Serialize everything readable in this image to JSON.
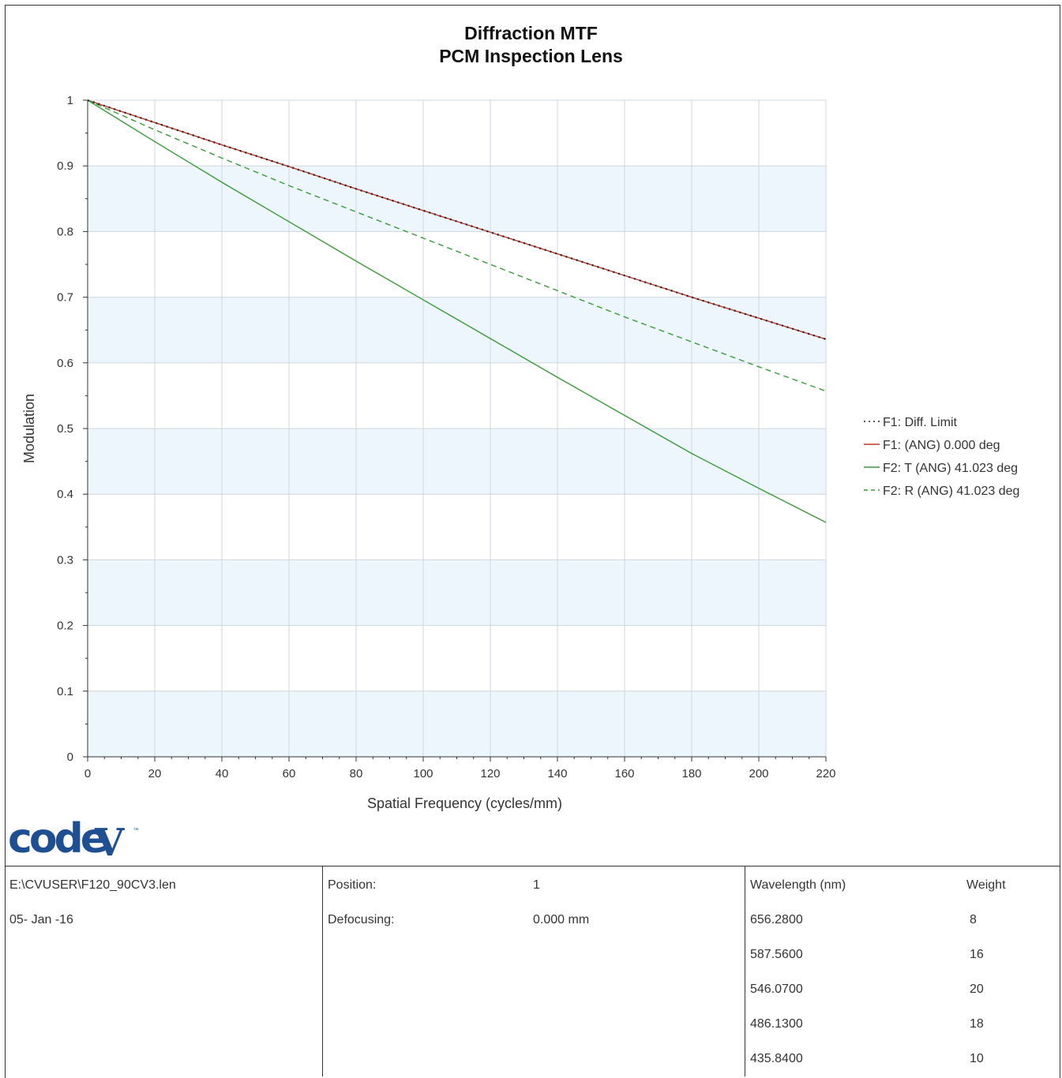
{
  "chart_data": {
    "type": "line",
    "title": "Diffraction MTF",
    "subtitle": "PCM Inspection Lens",
    "xlabel": "Spatial Frequency (cycles/mm)",
    "ylabel": "Modulation",
    "xlim": [
      0,
      220
    ],
    "ylim": [
      0,
      1
    ],
    "x_ticks": [
      "0",
      "20",
      "40",
      "60",
      "80",
      "100",
      "120",
      "140",
      "160",
      "180",
      "200",
      "220"
    ],
    "y_ticks": [
      "0",
      "0.1",
      "0.2",
      "0.3",
      "0.4",
      "0.5",
      "0.6",
      "0.7",
      "0.8",
      "0.9",
      "1"
    ],
    "grid": true,
    "legend_position": "right",
    "x": [
      0,
      20,
      40,
      60,
      80,
      100,
      120,
      140,
      160,
      180,
      200,
      220
    ],
    "series": [
      {
        "name": "F1: Diff. Limit",
        "color": "#222222",
        "style": "dotted",
        "values": [
          1.0,
          0.966,
          0.932,
          0.899,
          0.865,
          0.832,
          0.799,
          0.766,
          0.733,
          0.7,
          0.668,
          0.636
        ]
      },
      {
        "name": "F1: (ANG) 0.000 deg",
        "color": "#c0392b",
        "style": "solid",
        "values": [
          1.0,
          0.966,
          0.932,
          0.899,
          0.865,
          0.832,
          0.799,
          0.766,
          0.733,
          0.7,
          0.668,
          0.636
        ]
      },
      {
        "name": "F2: T (ANG) 41.023 deg",
        "color": "#3a9a3a",
        "style": "solid",
        "values": [
          1.0,
          0.937,
          0.875,
          0.815,
          0.755,
          0.696,
          0.637,
          0.578,
          0.52,
          0.462,
          0.409,
          0.357
        ]
      },
      {
        "name": "F2: R (ANG) 41.023 deg",
        "color": "#3a9a3a",
        "style": "dashed",
        "values": [
          1.0,
          0.955,
          0.912,
          0.87,
          0.83,
          0.79,
          0.75,
          0.71,
          0.67,
          0.632,
          0.594,
          0.557
        ]
      }
    ]
  },
  "logo_text": "code V",
  "info": {
    "file": "E:\\CVUSER\\F120_90CV3.len",
    "date": "05- Jan -16",
    "position_label": "Position:",
    "position_value": "1",
    "defocus_label": "Defocusing:",
    "defocus_value": "0.000 mm",
    "wavelength_header": "Wavelength (nm)",
    "weight_header": "Weight",
    "wavelengths": [
      {
        "nm": "656.2800",
        "weight": "8"
      },
      {
        "nm": "587.5600",
        "weight": "16"
      },
      {
        "nm": "546.0700",
        "weight": "20"
      },
      {
        "nm": "486.1300",
        "weight": "18"
      },
      {
        "nm": "435.8400",
        "weight": "10"
      }
    ]
  }
}
